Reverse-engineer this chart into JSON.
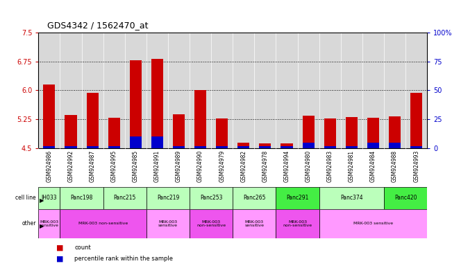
{
  "title": "GDS4342 / 1562470_at",
  "samples": [
    "GSM924986",
    "GSM924992",
    "GSM924987",
    "GSM924995",
    "GSM924985",
    "GSM924991",
    "GSM924989",
    "GSM924990",
    "GSM924979",
    "GSM924982",
    "GSM924978",
    "GSM924994",
    "GSM924980",
    "GSM924983",
    "GSM924981",
    "GSM924984",
    "GSM924988",
    "GSM924993"
  ],
  "count_values": [
    6.15,
    5.36,
    5.93,
    5.28,
    6.78,
    6.82,
    5.38,
    6.0,
    5.27,
    4.65,
    4.62,
    4.62,
    5.35,
    5.27,
    5.3,
    5.28,
    5.33,
    5.93
  ],
  "percentile_values": [
    2,
    2,
    2,
    2,
    10,
    10,
    2,
    2,
    2,
    2,
    2,
    2,
    5,
    2,
    2,
    5,
    5,
    2
  ],
  "y_min": 4.5,
  "y_max": 7.5,
  "y_ticks_left": [
    4.5,
    5.25,
    6.0,
    6.75,
    7.5
  ],
  "y_ticks_right": [
    0,
    25,
    50,
    75,
    100
  ],
  "dotted_lines": [
    5.25,
    6.0,
    6.75
  ],
  "cell_lines": [
    {
      "name": "JH033",
      "start": 0,
      "end": 1,
      "color": "#bbffbb"
    },
    {
      "name": "Panc198",
      "start": 1,
      "end": 3,
      "color": "#bbffbb"
    },
    {
      "name": "Panc215",
      "start": 3,
      "end": 5,
      "color": "#bbffbb"
    },
    {
      "name": "Panc219",
      "start": 5,
      "end": 7,
      "color": "#bbffbb"
    },
    {
      "name": "Panc253",
      "start": 7,
      "end": 9,
      "color": "#bbffbb"
    },
    {
      "name": "Panc265",
      "start": 9,
      "end": 11,
      "color": "#bbffbb"
    },
    {
      "name": "Panc291",
      "start": 11,
      "end": 13,
      "color": "#44ee44"
    },
    {
      "name": "Panc374",
      "start": 13,
      "end": 16,
      "color": "#bbffbb"
    },
    {
      "name": "Panc420",
      "start": 16,
      "end": 18,
      "color": "#44ee44"
    }
  ],
  "other_rows": [
    {
      "label": "MRK-003\nsensitive",
      "start": 0,
      "end": 1,
      "color": "#ff99ff"
    },
    {
      "label": "MRK-003 non-sensitive",
      "start": 1,
      "end": 5,
      "color": "#ee55ee"
    },
    {
      "label": "MRK-003\nsensitive",
      "start": 5,
      "end": 7,
      "color": "#ff99ff"
    },
    {
      "label": "MRK-003\nnon-sensitive",
      "start": 7,
      "end": 9,
      "color": "#ee55ee"
    },
    {
      "label": "MRK-003\nsensitive",
      "start": 9,
      "end": 11,
      "color": "#ff99ff"
    },
    {
      "label": "MRK-003\nnon-sensitive",
      "start": 11,
      "end": 13,
      "color": "#ee55ee"
    },
    {
      "label": "MRK-003 sensitive",
      "start": 13,
      "end": 18,
      "color": "#ff99ff"
    }
  ],
  "bar_color": "#cc0000",
  "blue_color": "#0000cc",
  "bg_color": "#d8d8d8",
  "left_axis_color": "#cc0000",
  "right_axis_color": "#0000cc",
  "label_left_color": "#888888"
}
